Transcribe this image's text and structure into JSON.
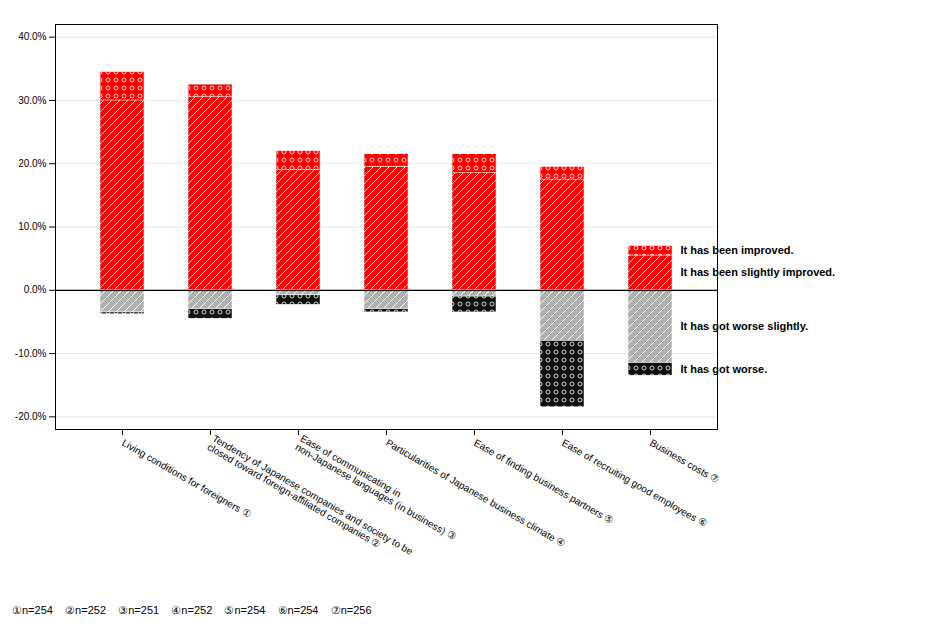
{
  "chart_data": {
    "type": "bar",
    "stacked": true,
    "grid": true,
    "categories": [
      "Living conditions for foreigners ①",
      "Tendency of Japanese companies and society to be\nclosed toward foreign-affiliated companies ②",
      "Ease of communicating in\nnon-Japanese languages (in business) ③",
      "Particularities of Japanese business climate ④",
      "Ease of finding business partners ⑤",
      "Ease of recruiting good employees ⑥",
      "Business costs ⑦"
    ],
    "series": [
      {
        "name": "It has been slightly improved.",
        "color": "#ff0000",
        "values": [
          30.0,
          30.5,
          19.0,
          19.5,
          18.5,
          17.5,
          5.5
        ]
      },
      {
        "name": "It has been improved.",
        "color": "#ff0000",
        "values": [
          4.5,
          2.0,
          3.0,
          2.0,
          3.0,
          2.0,
          1.5
        ]
      },
      {
        "name": "It has got worse slightly.",
        "color": "#b0b0b0",
        "values": [
          -3.5,
          -3.0,
          -0.8,
          -3.0,
          -1.0,
          -8.0,
          -11.5
        ]
      },
      {
        "name": "It has got worse.",
        "color": "#111111",
        "values": [
          -0.3,
          -1.5,
          -1.5,
          -0.5,
          -2.5,
          -10.5,
          -2.0
        ]
      }
    ],
    "ylim": [
      -22,
      42
    ],
    "yticks": [
      {
        "value": -20.0,
        "label": "-20.0%"
      },
      {
        "value": -10.0,
        "label": "-10.0%"
      },
      {
        "value": 0.0,
        "label": "0.0%"
      },
      {
        "value": 10.0,
        "label": "10.0%"
      },
      {
        "value": 20.0,
        "label": "20.0%"
      },
      {
        "value": 30.0,
        "label": "30.0%"
      },
      {
        "value": 40.0,
        "label": "40.0%"
      }
    ],
    "footnotes": [
      "①n=254",
      "②n=252",
      "③n=251",
      "④n=252",
      "⑤n=254",
      "⑥n=254",
      "⑦n=256"
    ]
  }
}
